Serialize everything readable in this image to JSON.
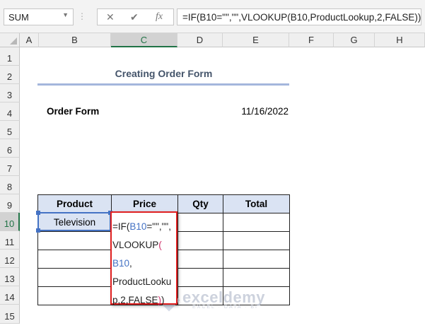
{
  "formula_bar": {
    "name_box": "SUM",
    "cancel_icon": "✕",
    "enter_icon": "✔",
    "fx_label": "fx",
    "formula": "=IF(B10=\"\",\"\",VLOOKUP(B10,ProductLookup,2,FALSE))"
  },
  "columns": [
    "A",
    "B",
    "C",
    "D",
    "E",
    "F",
    "G",
    "H"
  ],
  "rows": [
    "1",
    "2",
    "3",
    "4",
    "5",
    "6",
    "7",
    "8",
    "9",
    "10",
    "11",
    "12",
    "13",
    "14",
    "15"
  ],
  "sheet": {
    "title": "Creating Order Form",
    "order_label": "Order Form",
    "date": "11/16/2022",
    "table": {
      "headers": [
        "Product",
        "Price",
        "Qty",
        "Total"
      ],
      "rows": [
        [
          "Television",
          "",
          "",
          ""
        ],
        [
          "",
          "",
          "",
          ""
        ],
        [
          "",
          "",
          "",
          ""
        ],
        [
          "",
          "",
          "",
          ""
        ],
        [
          "",
          "",
          "",
          ""
        ]
      ]
    },
    "edit_lines": [
      {
        "parts": [
          "=IF(",
          "B10",
          "=\"\",\"\","
        ]
      },
      {
        "parts": [
          "VLOOKUP",
          "("
        ]
      },
      {
        "parts": [
          "B10",
          ","
        ]
      },
      {
        "parts": [
          "ProductLooku"
        ]
      },
      {
        "parts": [
          "p,2,FALSE",
          ")",
          ")"
        ]
      }
    ]
  },
  "watermark": {
    "name": "exceldemy",
    "tagline": "EXCEL · DATA · BI"
  },
  "colors": {
    "header_fill": "#dae3f3",
    "selection": "#4472c4",
    "edit_border": "#e02020",
    "excel_green": "#217346"
  }
}
